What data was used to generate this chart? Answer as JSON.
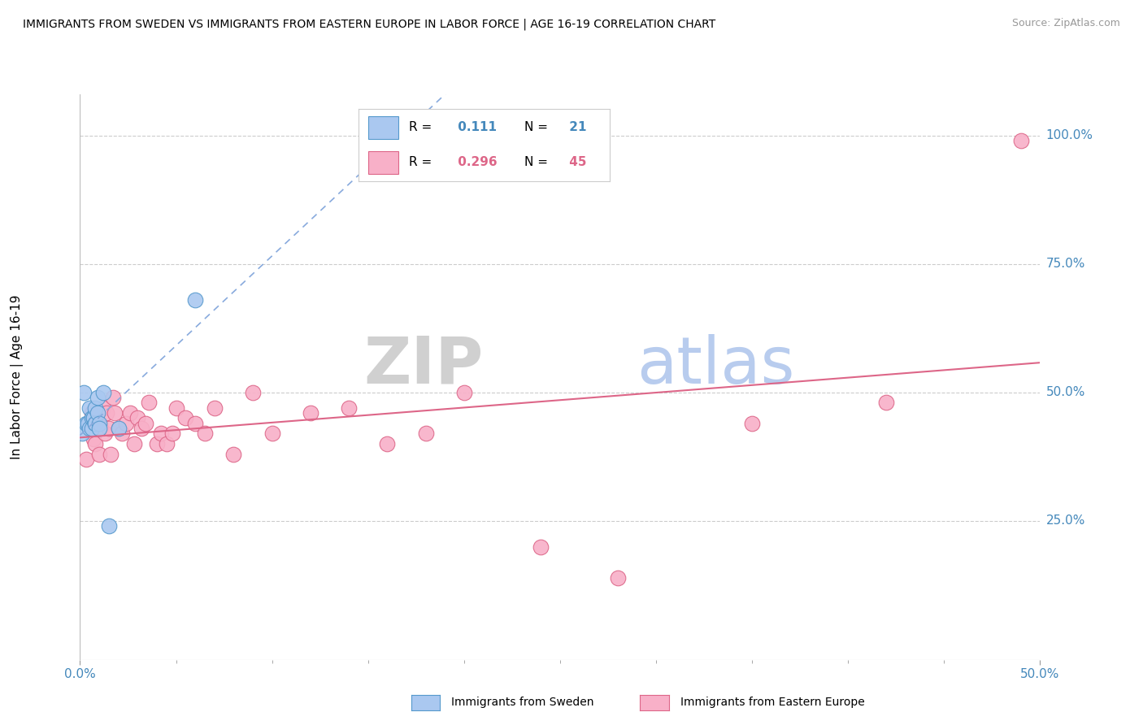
{
  "title": "IMMIGRANTS FROM SWEDEN VS IMMIGRANTS FROM EASTERN EUROPE IN LABOR FORCE | AGE 16-19 CORRELATION CHART",
  "source": "Source: ZipAtlas.com",
  "ylabel": "In Labor Force | Age 16-19",
  "xlim": [
    0.0,
    0.5
  ],
  "ylim": [
    -0.02,
    1.08
  ],
  "ytick_values": [
    0.25,
    0.5,
    0.75,
    1.0
  ],
  "ytick_labels": [
    "25.0%",
    "50.0%",
    "75.0%",
    "100.0%"
  ],
  "xtick_values": [
    0.0,
    0.5
  ],
  "xtick_labels": [
    "0.0%",
    "50.0%"
  ],
  "legend_sweden_r": "0.111",
  "legend_sweden_n": "21",
  "legend_eastern_r": "0.296",
  "legend_eastern_n": "45",
  "sweden_color": "#aac8f0",
  "sweden_edge": "#5599cc",
  "eastern_color": "#f8b0c8",
  "eastern_edge": "#dd6688",
  "sweden_line_color": "#88aadd",
  "eastern_line_color": "#dd6688",
  "sweden_points_x": [
    0.001,
    0.002,
    0.003,
    0.004,
    0.005,
    0.005,
    0.006,
    0.006,
    0.007,
    0.007,
    0.008,
    0.008,
    0.008,
    0.009,
    0.009,
    0.01,
    0.01,
    0.012,
    0.015,
    0.02,
    0.06
  ],
  "sweden_points_y": [
    0.42,
    0.5,
    0.44,
    0.44,
    0.43,
    0.47,
    0.43,
    0.45,
    0.45,
    0.45,
    0.44,
    0.44,
    0.47,
    0.46,
    0.49,
    0.44,
    0.43,
    0.5,
    0.24,
    0.43,
    0.68
  ],
  "eastern_points_x": [
    0.003,
    0.006,
    0.007,
    0.008,
    0.009,
    0.01,
    0.011,
    0.012,
    0.013,
    0.014,
    0.015,
    0.016,
    0.017,
    0.018,
    0.02,
    0.022,
    0.024,
    0.026,
    0.028,
    0.03,
    0.032,
    0.034,
    0.036,
    0.04,
    0.042,
    0.045,
    0.048,
    0.05,
    0.055,
    0.06,
    0.065,
    0.07,
    0.08,
    0.09,
    0.1,
    0.12,
    0.14,
    0.16,
    0.18,
    0.2,
    0.24,
    0.28,
    0.35,
    0.42,
    0.49
  ],
  "eastern_points_y": [
    0.37,
    0.46,
    0.41,
    0.4,
    0.44,
    0.38,
    0.43,
    0.47,
    0.42,
    0.46,
    0.43,
    0.38,
    0.49,
    0.46,
    0.43,
    0.42,
    0.44,
    0.46,
    0.4,
    0.45,
    0.43,
    0.44,
    0.48,
    0.4,
    0.42,
    0.4,
    0.42,
    0.47,
    0.45,
    0.44,
    0.42,
    0.47,
    0.38,
    0.5,
    0.42,
    0.46,
    0.47,
    0.4,
    0.42,
    0.5,
    0.2,
    0.14,
    0.44,
    0.48,
    0.99
  ],
  "background_color": "#ffffff",
  "grid_color": "#cccccc",
  "watermark_zip_color": "#d0d0d0",
  "watermark_atlas_color": "#b0ccee"
}
